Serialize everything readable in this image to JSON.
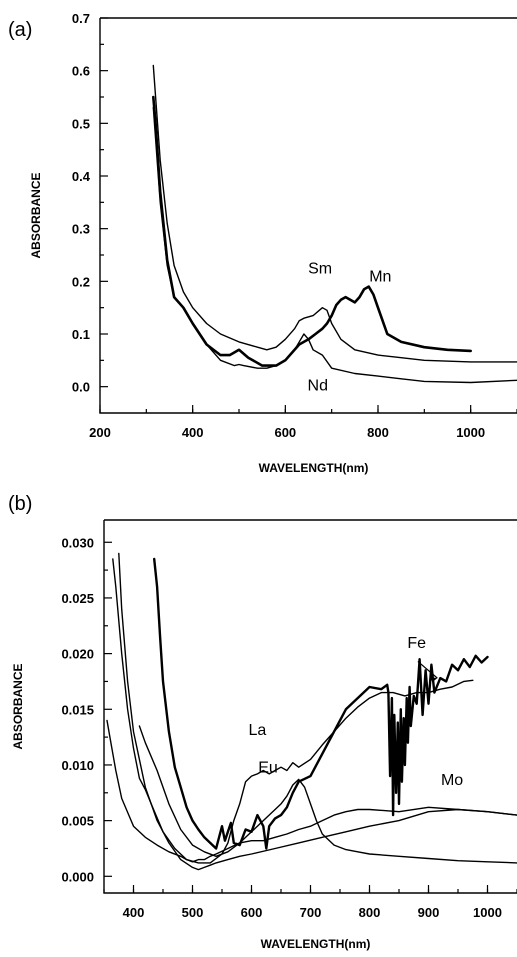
{
  "chart_data": [
    {
      "panel_label": "(a)",
      "type": "line",
      "xlabel": "WAVELENGTH(nm)",
      "ylabel": "ABSORBANCE",
      "xlim": [
        200,
        1100
      ],
      "ylim": [
        -0.05,
        0.7
      ],
      "xticks": [
        200,
        400,
        600,
        800,
        1000
      ],
      "xtick_labels": [
        "200",
        "400",
        "600",
        "800",
        "1000"
      ],
      "yticks": [
        0.0,
        0.1,
        0.2,
        0.3,
        0.4,
        0.5,
        0.6,
        0.7
      ],
      "ytick_labels": [
        "0.0",
        "0.1",
        "0.2",
        "0.3",
        "0.4",
        "0.5",
        "0.6",
        "0.7"
      ],
      "series": [
        {
          "name": "Mn",
          "width": 2.6,
          "x": [
            315,
            320,
            330,
            345,
            360,
            380,
            400,
            430,
            460,
            480,
            500,
            520,
            550,
            580,
            600,
            630,
            650,
            665,
            680,
            690,
            700,
            710,
            720,
            730,
            740,
            750,
            760,
            770,
            780,
            790,
            800,
            820,
            850,
            900,
            950,
            1000
          ],
          "y": [
            0.55,
            0.5,
            0.37,
            0.24,
            0.17,
            0.15,
            0.12,
            0.08,
            0.06,
            0.06,
            0.07,
            0.055,
            0.04,
            0.04,
            0.05,
            0.08,
            0.09,
            0.1,
            0.11,
            0.12,
            0.135,
            0.155,
            0.165,
            0.17,
            0.165,
            0.16,
            0.17,
            0.185,
            0.19,
            0.175,
            0.15,
            0.1,
            0.085,
            0.075,
            0.07,
            0.068
          ]
        },
        {
          "name": "Sm",
          "width": 1.4,
          "x": [
            315,
            320,
            330,
            345,
            360,
            380,
            400,
            430,
            460,
            500,
            540,
            560,
            580,
            600,
            620,
            630,
            640,
            660,
            680,
            690,
            700,
            720,
            750,
            800,
            850,
            900,
            1000,
            1100
          ],
          "y": [
            0.61,
            0.55,
            0.43,
            0.31,
            0.23,
            0.18,
            0.15,
            0.12,
            0.1,
            0.085,
            0.075,
            0.07,
            0.075,
            0.09,
            0.11,
            0.125,
            0.13,
            0.135,
            0.15,
            0.145,
            0.12,
            0.09,
            0.07,
            0.06,
            0.055,
            0.05,
            0.047,
            0.047
          ]
        },
        {
          "name": "Nd",
          "width": 1.4,
          "x": [
            315,
            320,
            330,
            345,
            360,
            380,
            400,
            430,
            460,
            490,
            500,
            510,
            540,
            560,
            580,
            600,
            620,
            640,
            650,
            660,
            680,
            700,
            750,
            800,
            850,
            900,
            1000,
            1100
          ],
          "y": [
            0.53,
            0.47,
            0.35,
            0.23,
            0.17,
            0.15,
            0.12,
            0.08,
            0.05,
            0.04,
            0.042,
            0.04,
            0.035,
            0.035,
            0.04,
            0.05,
            0.07,
            0.1,
            0.09,
            0.07,
            0.06,
            0.035,
            0.025,
            0.02,
            0.015,
            0.01,
            0.008,
            0.012
          ]
        }
      ],
      "annotations": [
        {
          "text": "Sm",
          "x": 675,
          "y": 0.215
        },
        {
          "text": "Mn",
          "x": 805,
          "y": 0.2
        },
        {
          "text": "Nd",
          "x": 670,
          "y": -0.007
        }
      ]
    },
    {
      "panel_label": "(b)",
      "type": "line",
      "xlabel": "WAVELENGTH(nm)",
      "ylabel": "ABSORBANCE",
      "xlim": [
        350,
        1050
      ],
      "ylim": [
        -0.0015,
        0.032
      ],
      "xticks": [
        400,
        500,
        600,
        700,
        800,
        900,
        1000
      ],
      "xtick_labels": [
        "400",
        "500",
        "600",
        "700",
        "800",
        "900",
        "1000"
      ],
      "yticks": [
        0.0,
        0.005,
        0.01,
        0.015,
        0.02,
        0.025,
        0.03
      ],
      "ytick_labels": [
        "0.000",
        "0.005",
        "0.010",
        "0.015",
        "0.020",
        "0.025",
        "0.030"
      ],
      "series": [
        {
          "name": "Fe",
          "width": 2.4,
          "x": [
            435,
            440,
            445,
            450,
            460,
            470,
            480,
            490,
            500,
            510,
            520,
            530,
            540,
            550,
            555,
            560,
            565,
            570,
            580,
            590,
            600,
            610,
            620,
            625,
            630,
            640,
            650,
            660,
            670,
            680,
            700,
            720,
            740,
            760,
            780,
            800,
            820,
            830,
            832,
            835,
            838,
            840,
            842,
            845,
            848,
            850,
            853,
            855,
            858,
            860,
            863,
            865,
            868,
            870,
            875,
            880,
            885,
            890,
            895,
            900,
            905,
            910,
            920,
            930,
            940,
            950,
            960,
            970,
            980,
            990,
            1000
          ],
          "y": [
            0.0285,
            0.026,
            0.0215,
            0.0175,
            0.013,
            0.0098,
            0.008,
            0.0062,
            0.005,
            0.0042,
            0.0035,
            0.003,
            0.0025,
            0.0045,
            0.0032,
            0.004,
            0.0048,
            0.003,
            0.0028,
            0.0042,
            0.004,
            0.0055,
            0.0045,
            0.0025,
            0.0045,
            0.0052,
            0.0055,
            0.0062,
            0.0075,
            0.0085,
            0.009,
            0.011,
            0.013,
            0.015,
            0.016,
            0.017,
            0.0168,
            0.0172,
            0.0165,
            0.009,
            0.016,
            0.0055,
            0.0145,
            0.0075,
            0.0138,
            0.0065,
            0.015,
            0.0085,
            0.0142,
            0.01,
            0.016,
            0.012,
            0.017,
            0.0135,
            0.0162,
            0.0155,
            0.0195,
            0.0145,
            0.0185,
            0.0155,
            0.019,
            0.0165,
            0.0178,
            0.0175,
            0.019,
            0.0185,
            0.0195,
            0.0188,
            0.0198,
            0.0192,
            0.0197
          ]
        },
        {
          "name": "La",
          "width": 1.4,
          "x": [
            365,
            370,
            380,
            390,
            400,
            410,
            420,
            430,
            450,
            470,
            490,
            510,
            530,
            550,
            560,
            570,
            580,
            590,
            600,
            610,
            620,
            630,
            640,
            650,
            660,
            670,
            680,
            700,
            720,
            740,
            760,
            780,
            800,
            820,
            840,
            860,
            880,
            900,
            920,
            940,
            960,
            975
          ],
          "y": [
            0.0285,
            0.026,
            0.02,
            0.015,
            0.0115,
            0.0088,
            0.0078,
            0.0065,
            0.004,
            0.0025,
            0.0015,
            0.0012,
            0.0012,
            0.002,
            0.003,
            0.005,
            0.0065,
            0.0085,
            0.009,
            0.0092,
            0.0095,
            0.0092,
            0.0095,
            0.0098,
            0.0095,
            0.0102,
            0.0098,
            0.0105,
            0.0118,
            0.013,
            0.0142,
            0.0152,
            0.016,
            0.0165,
            0.0165,
            0.0162,
            0.0165,
            0.0165,
            0.0168,
            0.017,
            0.0175,
            0.0176
          ]
        },
        {
          "name": "Eu",
          "width": 1.4,
          "x": [
            410,
            420,
            440,
            460,
            480,
            500,
            520,
            540,
            560,
            580,
            600,
            620,
            640,
            650,
            660,
            670,
            680,
            690,
            700,
            710,
            720,
            740,
            760,
            780,
            800,
            850,
            900,
            950,
            1000,
            1050
          ],
          "y": [
            0.0135,
            0.012,
            0.0095,
            0.0065,
            0.0042,
            0.0028,
            0.0022,
            0.0018,
            0.0022,
            0.003,
            0.004,
            0.005,
            0.006,
            0.0065,
            0.0072,
            0.0082,
            0.0087,
            0.008,
            0.0065,
            0.005,
            0.0038,
            0.0028,
            0.0024,
            0.0022,
            0.002,
            0.0018,
            0.0016,
            0.0014,
            0.0013,
            0.0012
          ]
        },
        {
          "name": "Mo",
          "width": 1.4,
          "x": [
            355,
            360,
            370,
            380,
            400,
            420,
            440,
            460,
            480,
            490,
            500,
            510,
            520,
            530,
            540,
            560,
            580,
            600,
            620,
            640,
            660,
            680,
            700,
            720,
            740,
            760,
            780,
            800,
            850,
            900,
            950,
            1000,
            1050
          ],
          "y": [
            0.014,
            0.0125,
            0.0095,
            0.007,
            0.0045,
            0.0035,
            0.0028,
            0.0022,
            0.0018,
            0.0015,
            0.0013,
            0.0015,
            0.0015,
            0.0018,
            0.002,
            0.0025,
            0.003,
            0.0032,
            0.0032,
            0.0035,
            0.0038,
            0.0042,
            0.0045,
            0.005,
            0.0055,
            0.0058,
            0.006,
            0.006,
            0.0058,
            0.0062,
            0.006,
            0.0058,
            0.0055
          ]
        },
        {
          "name": "",
          "width": 1.4,
          "x": [
            375,
            380,
            390,
            400,
            420,
            440,
            460,
            480,
            500,
            510,
            520,
            530,
            540,
            560,
            580,
            600,
            640,
            680,
            720,
            760,
            800,
            850,
            900,
            950,
            1000,
            1050
          ],
          "y": [
            0.029,
            0.024,
            0.0175,
            0.013,
            0.008,
            0.005,
            0.003,
            0.0015,
            0.0008,
            0.0006,
            0.0008,
            0.001,
            0.0012,
            0.0015,
            0.0018,
            0.002,
            0.0025,
            0.003,
            0.0035,
            0.004,
            0.0045,
            0.005,
            0.0058,
            0.006,
            0.0058,
            0.0055
          ]
        }
      ],
      "annotations": [
        {
          "text": "Fe",
          "x": 880,
          "y": 0.0205
        },
        {
          "text": "La",
          "x": 610,
          "y": 0.0127
        },
        {
          "text": "Eu",
          "x": 628,
          "y": 0.0093
        },
        {
          "text": "Mo",
          "x": 940,
          "y": 0.0082
        }
      ]
    }
  ]
}
